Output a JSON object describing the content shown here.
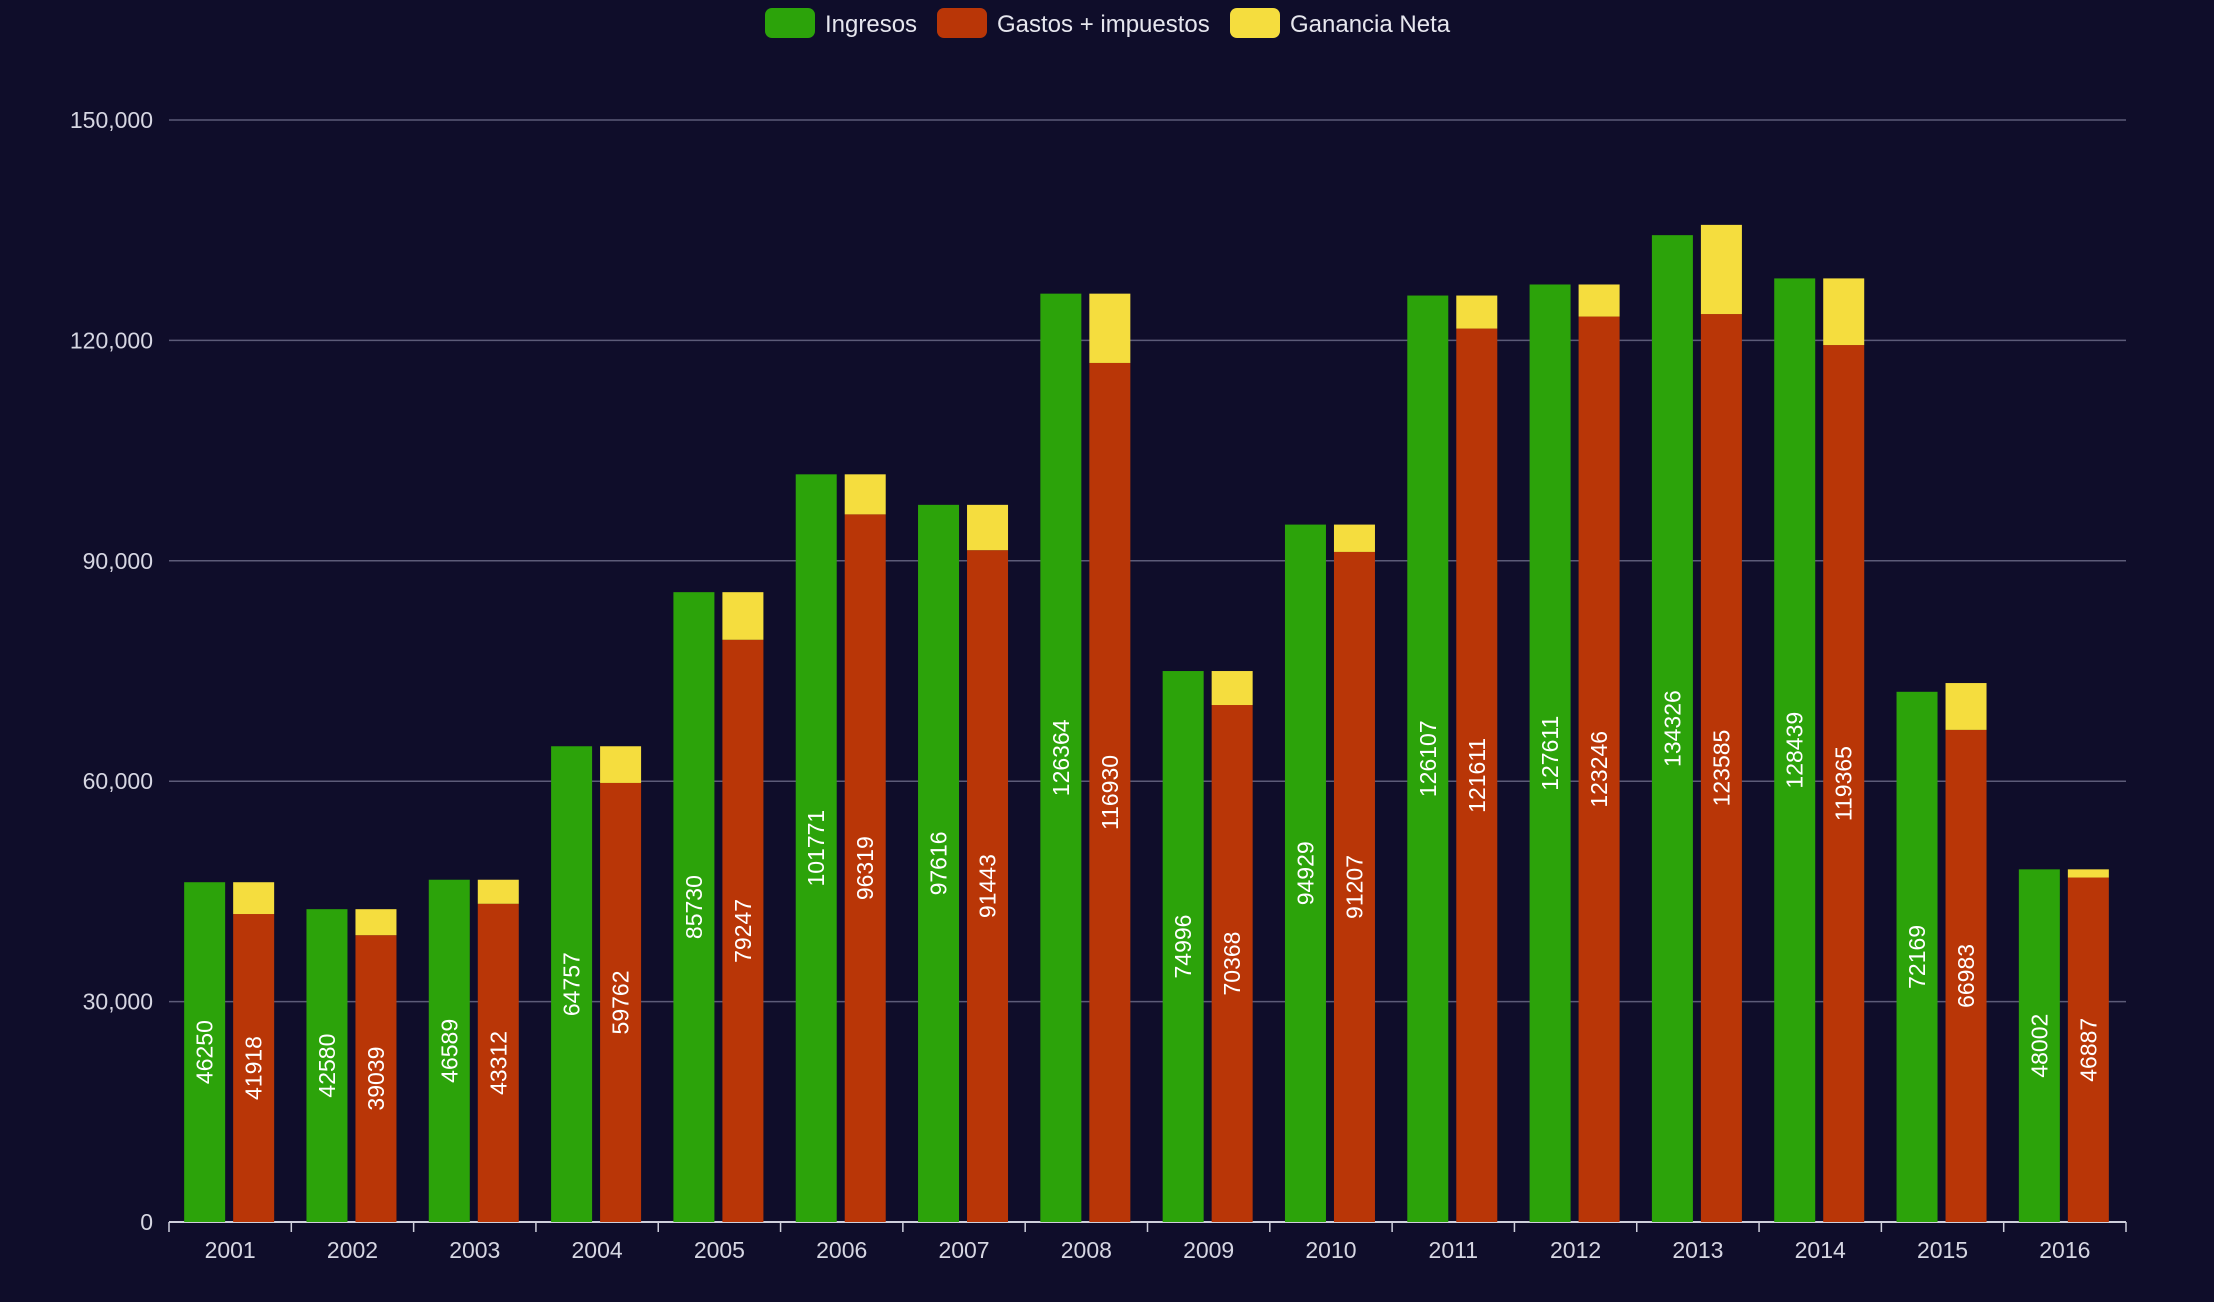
{
  "chart_data": {
    "type": "bar",
    "stacked_second_bar": true,
    "categories": [
      "2001",
      "2002",
      "2003",
      "2004",
      "2005",
      "2006",
      "2007",
      "2008",
      "2009",
      "2010",
      "2011",
      "2012",
      "2013",
      "2014",
      "2015",
      "2016"
    ],
    "series": [
      {
        "name": "Ingresos",
        "color": "#2ca30a",
        "values": [
          46250,
          42580,
          46589,
          64757,
          85730,
          101771,
          97616,
          126364,
          74996,
          94929,
          126107,
          127611,
          134326,
          128439,
          72169,
          48002
        ]
      },
      {
        "name": "Gastos + impuestos",
        "color": "#b93607",
        "values": [
          41918,
          39039,
          43312,
          59762,
          79247,
          96319,
          91443,
          116930,
          70368,
          91207,
          121611,
          123246,
          123585,
          119365,
          66983,
          46887
        ]
      },
      {
        "name": "Ganancia Neta",
        "color": "#f5dd3e",
        "values": [
          4332,
          3541,
          3277,
          4995,
          6483,
          5452,
          6173,
          9434,
          4628,
          3722,
          4496,
          4365,
          12141,
          9074,
          6377,
          1115
        ]
      }
    ],
    "legend": {
      "position": "top-center",
      "items": [
        "Ingresos",
        "Gastos + impuestos",
        "Ganancia Neta"
      ]
    },
    "y_ticks": [
      "0",
      "30,000",
      "60,000",
      "90,000",
      "120,000",
      "150,000"
    ],
    "ylim": [
      0,
      150000
    ],
    "grid": true,
    "title": "",
    "xlabel": "",
    "ylabel": ""
  }
}
